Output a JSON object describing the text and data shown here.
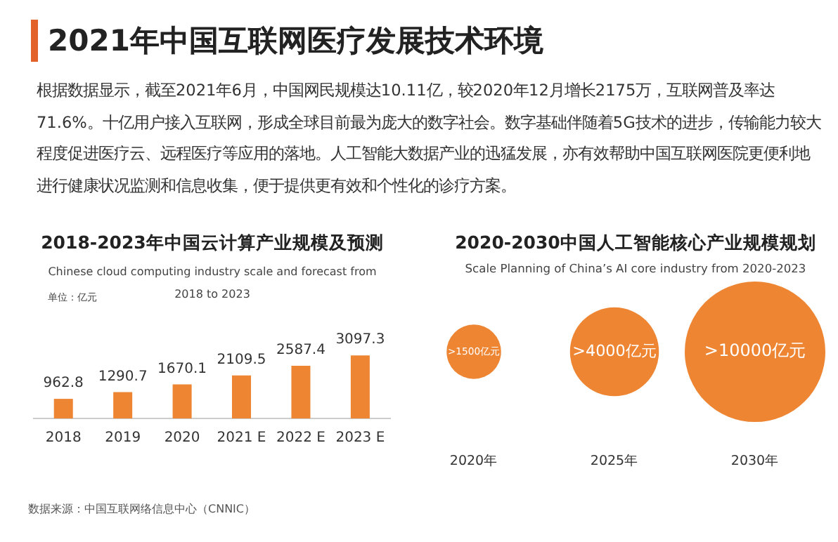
{
  "chart_data": [
    {
      "type": "other",
      "title": "2021年中国互联网医疗发展技术环境",
      "annotations": [
        "根据数据显示，截至2021年6月，中国网民规模达10.11亿，较2020年12月增长2175万，互联网普及率达71.6%。十亿用户接入互联网，形成全球目前最为庞大的数字社会。数字基础伴随着5G技术的进步，传输能力较大程度促进医疗云、远程医疗等应用的落地。人工智能大数据产业的迅猛发展，亦有效帮助中国互联网医院更便利地进行健康状况监测和信息收集，便于提供更有效和个性化的诊疗方案。"
      ]
    },
    {
      "type": "bar",
      "title": "2018-2023年中国云计算产业规模及预测",
      "subtitle": "Chinese  cloud computing industry scale and forecast from 2018 to 2023",
      "ylabel": "单位：亿元",
      "categories": [
        "2018",
        "2019",
        "2020",
        "2021 E",
        "2022 E",
        "2023 E"
      ],
      "values": [
        962.8,
        1290.7,
        1670.1,
        2109.5,
        2587.4,
        3097.3
      ],
      "color": "#ee8533",
      "data_labels": true,
      "annotations": [
        "数据来源：中国互联网络信息中心（CNNIC）"
      ]
    },
    {
      "type": "other",
      "title": "2020-2030中国人工智能核心产业规模规划",
      "subtitle": "Scale Planning of China’s AI core industry from 2020-2023",
      "categories": [
        "2020年",
        "2025年",
        "2030年"
      ],
      "values": [
        1500,
        4000,
        10000
      ],
      "value_labels": [
        ">1500亿元",
        ">4000亿元",
        ">10000亿元"
      ],
      "color": "#ee8533"
    }
  ]
}
